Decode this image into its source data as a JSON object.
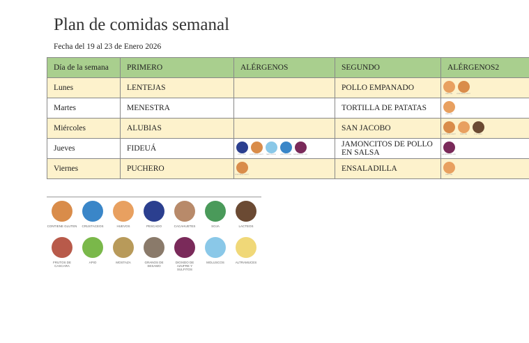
{
  "header": {
    "title": "Plan de comidas semanal",
    "subtitle": "Fecha del 19 al 23 de Enero 2026"
  },
  "table": {
    "columns": [
      "Día de la semana",
      "PRIMERO",
      "ALÉRGENOS",
      "SEGUNDO",
      "ALÉRGENOS2"
    ],
    "rows": [
      [
        "Lunes",
        "LENTEJAS",
        [],
        "POLLO EMPANADO",
        [
          "HUEVOS",
          "CONTIENE GLUTEN"
        ]
      ],
      [
        "Martes",
        "MENESTRA",
        [],
        "TORTILLA DE PATATAS",
        [
          "HUEVOS"
        ]
      ],
      [
        "Miércoles",
        "ALUBIAS",
        [],
        "SAN JACOBO",
        [
          "CONTIENE GLUTEN",
          "HUEVOS",
          "LACTEOS"
        ]
      ],
      [
        "Jueves",
        "FIDEUÁ",
        [
          "PESCADO",
          "CONTIENE GLUTEN",
          "MOLUSCOS",
          "CRUSTACEOS",
          "DIOXIDO DE AZUFRE Y SULFITOS"
        ],
        "JAMONCITOS DE POLLO EN SALSA",
        [
          "DIOXIDO DE AZUFRE Y SULFITOS"
        ]
      ],
      [
        "Viernes",
        "PUCHERO",
        [
          "CONTIENE GLUTEN"
        ],
        "ENSALADILLA",
        [
          "HUEVOS"
        ]
      ]
    ]
  },
  "legend": [
    {
      "label": "CONTIENE GLUTEN",
      "color": "#d98c4a"
    },
    {
      "label": "CRUSTACEOS",
      "color": "#3a86c8"
    },
    {
      "label": "HUEVOS",
      "color": "#e8a060"
    },
    {
      "label": "PESCADO",
      "color": "#2b3f8f"
    },
    {
      "label": "CACAHUETES",
      "color": "#b88a6a"
    },
    {
      "label": "SOJA",
      "color": "#4a9a5a"
    },
    {
      "label": "LACTEOS",
      "color": "#6b4a33"
    },
    {
      "label": "FRUTOS DE CASCARA",
      "color": "#b85a4a"
    },
    {
      "label": "APIO",
      "color": "#7ab84a"
    },
    {
      "label": "MOSTAZA",
      "color": "#b89a5a"
    },
    {
      "label": "GRANOS DE SESAMO",
      "color": "#8a7a6a"
    },
    {
      "label": "DIOXIDO DE AZUFRE Y SULFITOS",
      "color": "#7a2a5a"
    },
    {
      "label": "MOLUSCOS",
      "color": "#8ac8e8"
    },
    {
      "label": "ALTRAMUCES",
      "color": "#f0d878"
    }
  ]
}
